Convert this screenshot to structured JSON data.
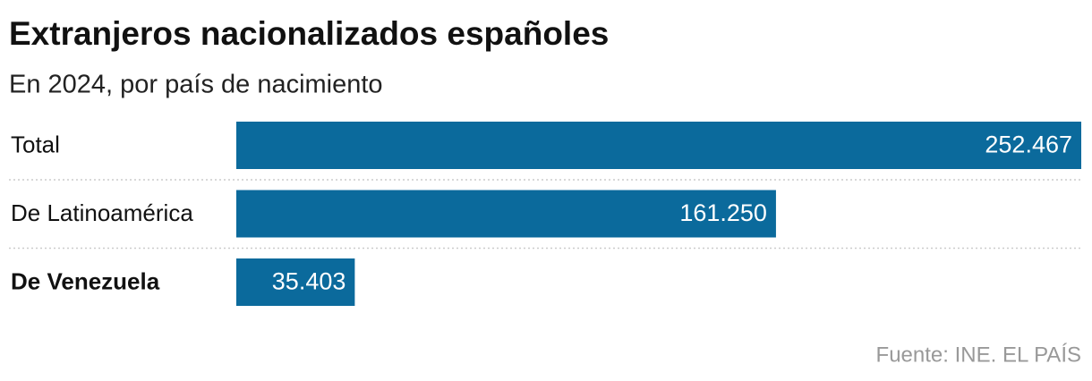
{
  "chart_data": {
    "type": "bar",
    "orientation": "horizontal",
    "title": "Extranjeros nacionalizados españoles",
    "subtitle": "En 2024, por país de nacimiento",
    "categories": [
      "Total",
      "De Latinoamérica",
      "De Venezuela"
    ],
    "values": [
      252467,
      161250,
      35403
    ],
    "value_labels": [
      "252.467",
      "161.250",
      "35.403"
    ],
    "color": "#0b6a9c",
    "highlight_index": 2,
    "source": "Fuente: INE. EL PAÍS"
  }
}
